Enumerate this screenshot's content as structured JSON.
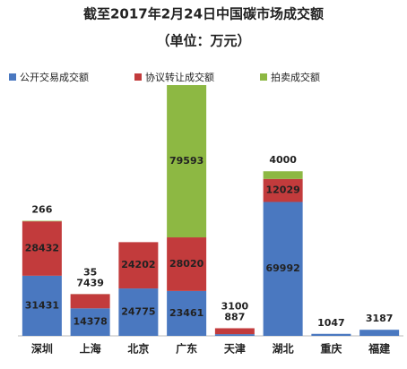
{
  "chart_data": {
    "type": "stacked-bar",
    "title": "截至2017年2月24日中国碳市场成交额",
    "subtitle": "（单位：万元）",
    "categories": [
      "深圳",
      "上海",
      "北京",
      "广东",
      "天津",
      "湖北",
      "重庆",
      "福建"
    ],
    "series": [
      {
        "name": "公开交易成交额",
        "color": "#4a78c0",
        "values": [
          31431,
          14378,
          24775,
          23461,
          887,
          69992,
          1047,
          3187
        ]
      },
      {
        "name": "协议转让成交额",
        "color": "#c23b3c",
        "values": [
          28432,
          7439,
          24202,
          28020,
          3100,
          12029,
          null,
          null
        ]
      },
      {
        "name": "拍卖成交额",
        "color": "#8db843",
        "values": [
          266,
          35,
          null,
          79593,
          null,
          4000,
          null,
          null
        ]
      }
    ]
  }
}
